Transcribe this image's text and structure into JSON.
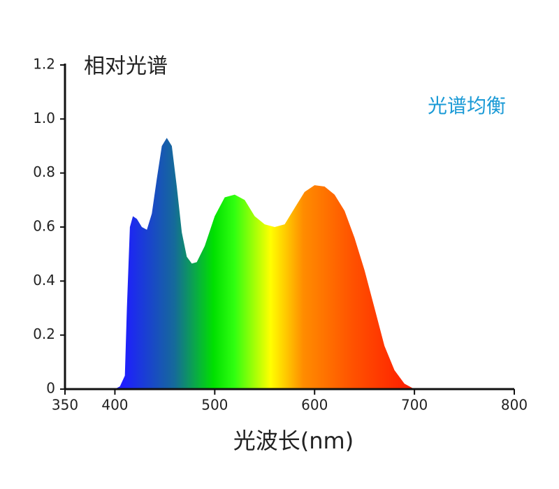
{
  "chart_data": {
    "type": "area",
    "title": "相对光谱",
    "annotation": "光谱均衡",
    "xlabel": "光波长(nm)",
    "x": [
      400,
      405,
      410,
      412,
      415,
      418,
      422,
      427,
      432,
      437,
      442,
      447,
      452,
      457,
      462,
      467,
      472,
      477,
      482,
      490,
      500,
      510,
      520,
      530,
      540,
      550,
      560,
      570,
      580,
      590,
      600,
      610,
      620,
      630,
      640,
      650,
      660,
      670,
      680,
      690,
      700
    ],
    "values": [
      0,
      0.01,
      0.05,
      0.3,
      0.6,
      0.64,
      0.63,
      0.6,
      0.59,
      0.65,
      0.78,
      0.9,
      0.93,
      0.9,
      0.75,
      0.58,
      0.49,
      0.465,
      0.47,
      0.53,
      0.64,
      0.71,
      0.72,
      0.7,
      0.64,
      0.61,
      0.6,
      0.61,
      0.67,
      0.73,
      0.755,
      0.75,
      0.72,
      0.66,
      0.56,
      0.44,
      0.3,
      0.16,
      0.07,
      0.02,
      0
    ],
    "xlim": [
      350,
      800
    ],
    "xticks": [
      350,
      400,
      500,
      600,
      700,
      800
    ],
    "ylim": [
      0,
      1.2
    ],
    "yticks": [
      0,
      0.2,
      0.4,
      0.6,
      0.8,
      {
        "value": 1,
        "label": "1.0"
      },
      1.2
    ],
    "annotation_color": "#1a9ad6"
  }
}
